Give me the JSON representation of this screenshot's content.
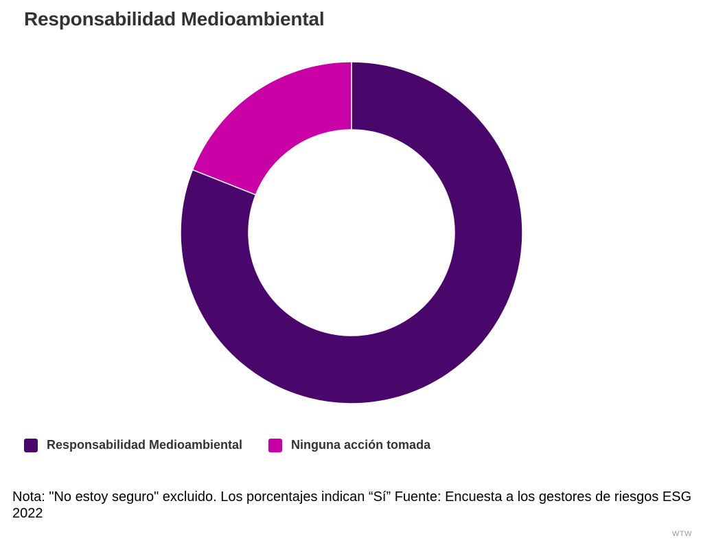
{
  "title": "Responsabilidad Medioambiental",
  "chart_data": {
    "type": "pie",
    "donut": true,
    "title": "Responsabilidad Medioambiental",
    "categories": [
      "Responsabilidad Medioambiental",
      "Ninguna acción tomada"
    ],
    "values": [
      81,
      19
    ],
    "colors": [
      "#4a076b",
      "#c800a5"
    ],
    "start_angle_deg": 0,
    "direction": "clockwise",
    "legend_position": "bottom-left"
  },
  "legend": {
    "items": [
      {
        "label": "Responsabilidad Medioambiental",
        "color": "#4a076b"
      },
      {
        "label": "Ninguna acción tomada",
        "color": "#c800a5"
      }
    ]
  },
  "footnote": "Nota: \"No estoy seguro\" excluido. Los porcentajes indican “Sí” Fuente: Encuesta a los gestores de riesgos ESG 2022",
  "credit": "WTW"
}
